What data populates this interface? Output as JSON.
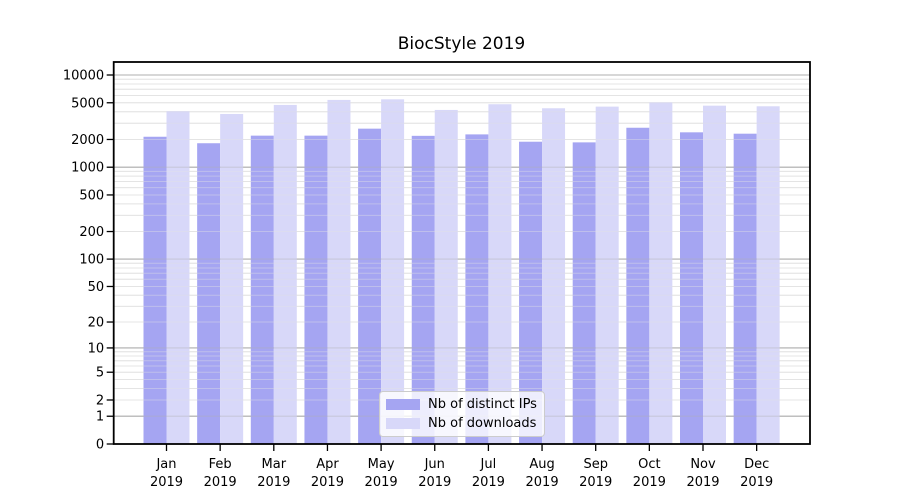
{
  "chart_data": {
    "type": "bar",
    "title": "BiocStyle 2019",
    "categories": [
      "Jan",
      "Feb",
      "Mar",
      "Apr",
      "May",
      "Jun",
      "Jul",
      "Aug",
      "Sep",
      "Oct",
      "Nov",
      "Dec"
    ],
    "category_year": "2019",
    "series": [
      {
        "name": "Nb of distinct IPs",
        "color": "#a5a5f2",
        "values": [
          2140,
          1820,
          2200,
          2200,
          2620,
          2190,
          2270,
          1890,
          1860,
          2680,
          2390,
          2310
        ]
      },
      {
        "name": "Nb of downloads",
        "color": "#d8d8f9",
        "values": [
          4060,
          3780,
          4740,
          5370,
          5450,
          4180,
          4820,
          4360,
          4540,
          5060,
          4650,
          4580
        ]
      }
    ],
    "y_ticks": [
      0,
      1,
      2,
      5,
      10,
      20,
      50,
      100,
      200,
      500,
      1000,
      2000,
      5000,
      10000
    ],
    "y_scale": "log1p",
    "ylim": [
      0,
      13000
    ],
    "xlabel": "",
    "ylabel": "",
    "grid": "horizontal major at powers of 10, minor 2-9 per decade",
    "legend_position": "inside bottom center",
    "colors": {
      "major_grid": "#b0b0b0",
      "minor_grid": "#e4e4e4",
      "axis": "#000000",
      "tick_text": "#000000",
      "background": "#ffffff",
      "legend_border": "#cccccc"
    }
  }
}
